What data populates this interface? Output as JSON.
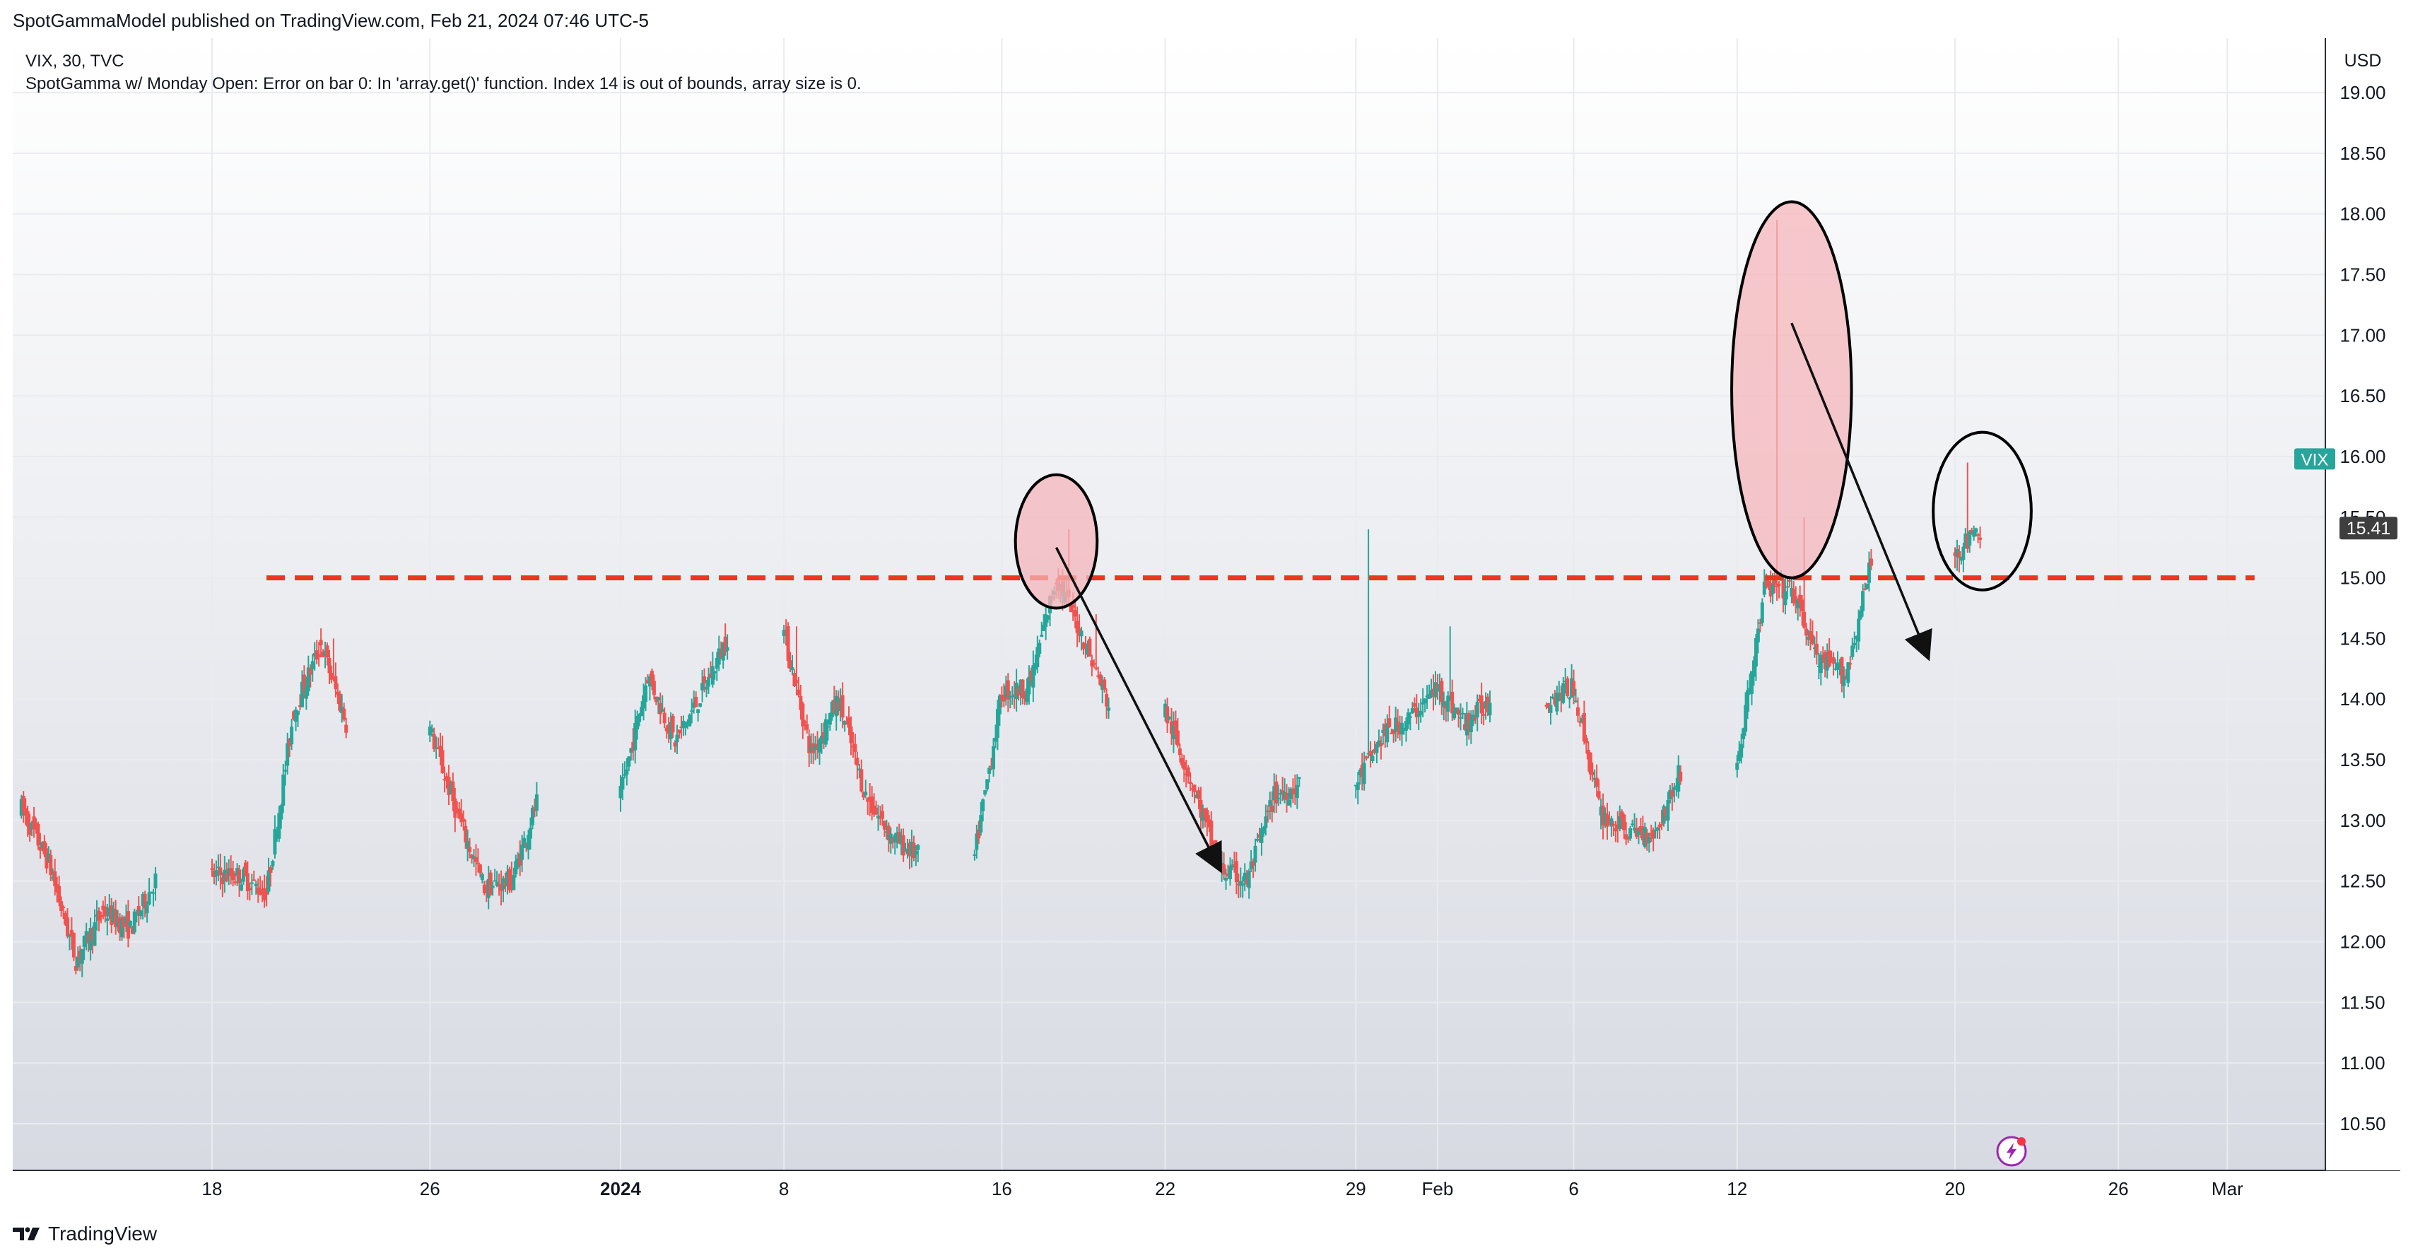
{
  "header": {
    "published": "SpotGammaModel published on TradingView.com, Feb 21, 2024 07:46 UTC-5"
  },
  "legend": {
    "symbol_line": "VIX, 30, TVC",
    "indicator_line": "SpotGamma w/ Monday Open: Error on bar 0: In 'array.get()' function. Index 14 is out of bounds, array size is 0."
  },
  "currency": "USD",
  "footer": {
    "brand": "TradingView"
  },
  "colors": {
    "up": "#26a69a",
    "down": "#ef5350",
    "dashed_level": "#e8381f",
    "highlight_fill": "#f4b6bb",
    "price_tag": "#26a69a",
    "last_tag": "#3e3e3e",
    "grid": "#e9ebef",
    "axis_text": "#131722"
  },
  "chart_data": {
    "type": "candlestick",
    "symbol": "VIX",
    "interval": "30",
    "source": "TVC",
    "ylim": [
      10.2,
      19.8
    ],
    "y_ticks": [
      "10.50",
      "11.00",
      "11.50",
      "12.00",
      "12.50",
      "13.00",
      "13.50",
      "14.00",
      "14.50",
      "15.00",
      "15.50",
      "16.00",
      "16.50",
      "17.00",
      "17.50",
      "18.00",
      "18.50",
      "19.00"
    ],
    "x_ticks": [
      {
        "label": "18",
        "date": "2023-12-18",
        "bold": false
      },
      {
        "label": "26",
        "date": "2023-12-26",
        "bold": false
      },
      {
        "label": "2024",
        "date": "2024-01-02",
        "bold": true
      },
      {
        "label": "8",
        "date": "2024-01-08",
        "bold": false
      },
      {
        "label": "16",
        "date": "2024-01-16",
        "bold": false
      },
      {
        "label": "22",
        "date": "2024-01-22",
        "bold": false
      },
      {
        "label": "29",
        "date": "2024-01-29",
        "bold": false
      },
      {
        "label": "Feb",
        "date": "2024-02-01",
        "bold": false
      },
      {
        "label": "6",
        "date": "2024-02-06",
        "bold": false
      },
      {
        "label": "12",
        "date": "2024-02-12",
        "bold": false
      },
      {
        "label": "20",
        "date": "2024-02-20",
        "bold": false
      },
      {
        "label": "26",
        "date": "2024-02-26",
        "bold": false
      },
      {
        "label": "Mar",
        "date": "2024-03-01",
        "bold": false
      }
    ],
    "price_path": [
      [
        "2023-12-11",
        13.1
      ],
      [
        "2023-12-12",
        12.65
      ],
      [
        "2023-12-13",
        11.85
      ],
      [
        "2023-12-14",
        12.25
      ],
      [
        "2023-12-15",
        12.1
      ],
      [
        "2023-12-18",
        12.55
      ],
      [
        "2023-12-19",
        12.55
      ],
      [
        "2023-12-20",
        12.4
      ],
      [
        "2023-12-21",
        13.9
      ],
      [
        "2023-12-22",
        14.45
      ],
      [
        "2023-12-26",
        13.75
      ],
      [
        "2023-12-27",
        13.05
      ],
      [
        "2023-12-28",
        12.45
      ],
      [
        "2023-12-29",
        12.5
      ],
      [
        "2024-01-02",
        13.2
      ],
      [
        "2024-01-03",
        14.2
      ],
      [
        "2024-01-04",
        13.65
      ],
      [
        "2024-01-05",
        14.05
      ],
      [
        "2024-01-08",
        14.55
      ],
      [
        "2024-01-09",
        13.55
      ],
      [
        "2024-01-10",
        14.0
      ],
      [
        "2024-01-11",
        13.2
      ],
      [
        "2024-01-12",
        12.85
      ],
      [
        "2024-01-15",
        12.7
      ],
      [
        "2024-01-16",
        14.05
      ],
      [
        "2024-01-17",
        14.1
      ],
      [
        "2024-01-18",
        15.0
      ],
      [
        "2024-01-19",
        14.5
      ],
      [
        "2024-01-22",
        13.9
      ],
      [
        "2024-01-23",
        13.3
      ],
      [
        "2024-01-24",
        12.6
      ],
      [
        "2024-01-25",
        12.5
      ],
      [
        "2024-01-26",
        13.2
      ],
      [
        "2024-01-29",
        13.3
      ],
      [
        "2024-01-30",
        13.7
      ],
      [
        "2024-01-31",
        13.85
      ],
      [
        "2024-02-01",
        14.1
      ],
      [
        "2024-02-02",
        13.8
      ],
      [
        "2024-02-05",
        14.0
      ],
      [
        "2024-02-06",
        14.1
      ],
      [
        "2024-02-07",
        13.05
      ],
      [
        "2024-02-08",
        12.9
      ],
      [
        "2024-02-09",
        12.9
      ],
      [
        "2024-02-12",
        13.45
      ],
      [
        "2024-02-13",
        14.9
      ],
      [
        "2024-02-14",
        14.9
      ],
      [
        "2024-02-15",
        14.3
      ],
      [
        "2024-02-16",
        14.2
      ],
      [
        "2024-02-20",
        15.2
      ],
      [
        "2024-02-21",
        15.41
      ]
    ],
    "gaps": [
      [
        "2023-12-22",
        "2023-12-26"
      ],
      [
        "2024-01-12",
        "2024-01-16"
      ],
      [
        "2024-02-09",
        "2024-02-12"
      ]
    ],
    "spikes": [
      {
        "date": "2023-12-22",
        "high": 14.5
      },
      {
        "date": "2024-01-08",
        "high": 14.6
      },
      {
        "date": "2024-01-18",
        "high": 15.4
      },
      {
        "date": "2024-01-19",
        "high": 14.7
      },
      {
        "date": "2024-01-29",
        "high": 15.4
      },
      {
        "date": "2024-02-01",
        "high": 14.6
      },
      {
        "date": "2024-02-13",
        "high": 17.95
      },
      {
        "date": "2024-02-14",
        "high": 15.5
      },
      {
        "date": "2024-02-16",
        "high": 14.65
      },
      {
        "date": "2024-02-20",
        "high": 15.95
      }
    ],
    "last_price": {
      "label": "VIX",
      "value": "15.41",
      "tag_level": 15.98,
      "last_level": 15.41
    },
    "annotations": {
      "dashed_level": {
        "value": 15.0,
        "from": "2023-12-20",
        "to": "2024-03-02"
      },
      "ellipses": [
        {
          "center": [
            "2024-01-18",
            15.3
          ],
          "rx_days": 1.5,
          "ry": 0.55,
          "fill": true
        },
        {
          "center": [
            "2024-02-14",
            16.55
          ],
          "rx_days": 2.2,
          "ry": 1.55,
          "fill": true
        },
        {
          "center": [
            "2024-02-21",
            15.55
          ],
          "rx_days": 1.8,
          "ry": 0.65,
          "fill": false
        }
      ],
      "arrows": [
        {
          "from": [
            "2024-01-18",
            15.25
          ],
          "to": [
            "2024-01-24",
            12.6
          ]
        },
        {
          "from": [
            "2024-02-14",
            17.1
          ],
          "to": [
            "2024-02-19",
            14.35
          ]
        }
      ]
    }
  }
}
